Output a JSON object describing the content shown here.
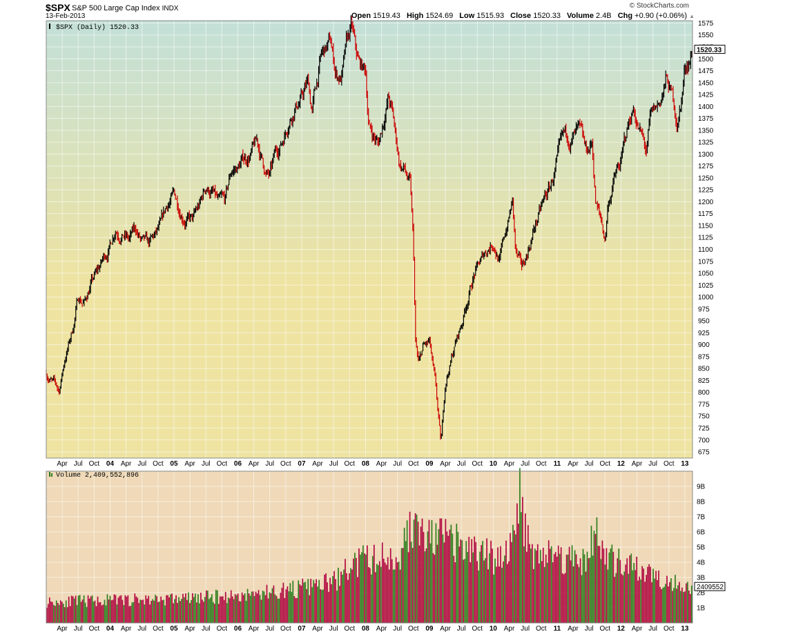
{
  "header": {
    "symbol": "$SPX",
    "name": "S&P 500 Large Cap Index",
    "exchange": "INDX",
    "date": "13-Feb-2013",
    "brand": "© StockCharts.com",
    "quote": {
      "open_label": "Open",
      "open": "1519.43",
      "high_label": "High",
      "high": "1524.69",
      "low_label": "Low",
      "low": "1515.93",
      "close_label": "Close",
      "close": "1520.33",
      "volume_label": "Volume",
      "volume": "2.4B",
      "chg_label": "Chg",
      "chg": "+0.90 (+0.06%)"
    }
  },
  "price_panel": {
    "legend": "$SPX (Daily) 1520.33",
    "last_value_tag": "1520.33"
  },
  "volume_panel": {
    "legend": "Volume 2,409,552,896",
    "last_value_tag": "2409552"
  },
  "colors": {
    "up": "#000000",
    "down": "#cc0000",
    "volume_up": "#2e7d1e",
    "volume_down": "#b00840",
    "price_bg_top": "#c3e0d8",
    "price_bg_mid": "#eee3a1",
    "volume_bg": "#efd9b8"
  },
  "chart_data": [
    {
      "type": "line",
      "title": "$SPX (Daily) 1520.33",
      "series": [
        {
          "name": "$SPX",
          "x": [
            2003.0,
            2003.11,
            2003.2,
            2003.29,
            2003.41,
            2003.5,
            2003.6,
            2003.7,
            2003.8,
            2003.9,
            2004.0,
            2004.08,
            2004.2,
            2004.3,
            2004.4,
            2004.5,
            2004.6,
            2004.7,
            2004.8,
            2004.9,
            2005.0,
            2005.08,
            2005.2,
            2005.3,
            2005.41,
            2005.5,
            2005.6,
            2005.7,
            2005.8,
            2005.9,
            2006.0,
            2006.1,
            2006.2,
            2006.3,
            2006.44,
            2006.5,
            2006.6,
            2006.7,
            2006.8,
            2006.9,
            2007.0,
            2007.1,
            2007.16,
            2007.3,
            2007.45,
            2007.53,
            2007.62,
            2007.7,
            2007.78,
            2007.85,
            2007.9,
            2008.0,
            2008.05,
            2008.2,
            2008.35,
            2008.4,
            2008.53,
            2008.6,
            2008.7,
            2008.75,
            2008.78,
            2008.83,
            2008.9,
            2009.0,
            2009.1,
            2009.18,
            2009.25,
            2009.4,
            2009.5,
            2009.6,
            2009.7,
            2009.8,
            2009.9,
            2010.0,
            2010.1,
            2010.3,
            2010.35,
            2010.45,
            2010.55,
            2010.65,
            2010.8,
            2010.9,
            2011.0,
            2011.1,
            2011.2,
            2011.33,
            2011.45,
            2011.55,
            2011.6,
            2011.7,
            2011.75,
            2011.8,
            2011.9,
            2012.0,
            2012.1,
            2012.2,
            2012.25,
            2012.4,
            2012.45,
            2012.6,
            2012.7,
            2012.75,
            2012.85,
            2012.88,
            2012.95,
            2013.0,
            2013.12
          ],
          "values": [
            842,
            820,
            800,
            870,
            930,
            1000,
            990,
            1030,
            1050,
            1080,
            1110,
            1150,
            1140,
            1120,
            1140,
            1110,
            1100,
            1120,
            1140,
            1190,
            1210,
            1190,
            1170,
            1160,
            1190,
            1230,
            1220,
            1190,
            1190,
            1260,
            1270,
            1290,
            1300,
            1320,
            1260,
            1250,
            1300,
            1330,
            1380,
            1410,
            1420,
            1450,
            1390,
            1500,
            1530,
            1470,
            1460,
            1520,
            1560,
            1500,
            1480,
            1470,
            1360,
            1320,
            1420,
            1400,
            1280,
            1270,
            1230,
            1100,
            900,
            850,
            890,
            900,
            800,
            680,
            820,
            900,
            940,
            1000,
            1050,
            1070,
            1100,
            1120,
            1080,
            1200,
            1090,
            1050,
            1100,
            1150,
            1200,
            1230,
            1280,
            1320,
            1330,
            1340,
            1290,
            1320,
            1200,
            1150,
            1120,
            1200,
            1250,
            1280,
            1350,
            1400,
            1370,
            1300,
            1360,
            1400,
            1450,
            1440,
            1390,
            1360,
            1420,
            1480,
            1520
          ]
        }
      ],
      "x_ticks": [
        "Apr",
        "Jul",
        "Oct",
        "04",
        "Apr",
        "Jul",
        "Oct",
        "05",
        "Apr",
        "Jul",
        "Oct",
        "06",
        "Apr",
        "Jul",
        "Oct",
        "07",
        "Apr",
        "Jul",
        "Oct",
        "08",
        "Apr",
        "Jul",
        "Oct",
        "09",
        "Apr",
        "Jul",
        "Oct",
        "10",
        "Apr",
        "Jul",
        "Oct",
        "11",
        "Apr",
        "Jul",
        "Oct",
        "12",
        "Apr",
        "Jul",
        "Oct",
        "13"
      ],
      "y_ticks": [
        675,
        700,
        725,
        750,
        775,
        800,
        825,
        850,
        875,
        900,
        925,
        950,
        975,
        1000,
        1025,
        1050,
        1075,
        1100,
        1125,
        1150,
        1175,
        1200,
        1225,
        1250,
        1275,
        1300,
        1325,
        1350,
        1375,
        1400,
        1425,
        1450,
        1475,
        1500,
        1525,
        1550,
        1575
      ],
      "xlim": [
        2003.0,
        2013.12
      ],
      "ylim": [
        662,
        1580
      ],
      "grid": true,
      "legend": "top-left"
    },
    {
      "type": "bar",
      "title": "Volume 2,409,552,896",
      "series": [
        {
          "name": "Volume",
          "x": [
            2003.0,
            2004.0,
            2005.0,
            2006.0,
            2007.0,
            2007.5,
            2007.8,
            2008.0,
            2008.5,
            2008.75,
            2008.85,
            2009.0,
            2009.2,
            2009.5,
            2010.0,
            2010.3,
            2010.4,
            2010.6,
            2011.0,
            2011.5,
            2011.6,
            2011.65,
            2011.8,
            2012.0,
            2012.5,
            2013.12
          ],
          "values": [
            1.4,
            1.5,
            1.6,
            1.8,
            2.3,
            2.7,
            3.8,
            4.2,
            4.3,
            6.5,
            5.9,
            5.5,
            5.7,
            5.0,
            4.3,
            5.1,
            8.5,
            4.8,
            4.4,
            4.2,
            6.7,
            5.0,
            4.3,
            3.8,
            3.2,
            2.4
          ]
        }
      ],
      "y_ticks": [
        "1B",
        "2B",
        "3B",
        "4B",
        "5B",
        "6B",
        "7B",
        "8B",
        "9B"
      ],
      "x_ticks": [
        "Apr",
        "Jul",
        "Oct",
        "04",
        "Apr",
        "Jul",
        "Oct",
        "05",
        "Apr",
        "Jul",
        "Oct",
        "06",
        "Apr",
        "Jul",
        "Oct",
        "07",
        "Apr",
        "Jul",
        "Oct",
        "08",
        "Apr",
        "Jul",
        "Oct",
        "09",
        "Apr",
        "Jul",
        "Oct",
        "10",
        "Apr",
        "Jul",
        "Oct",
        "11",
        "Apr",
        "Jul",
        "Oct",
        "12",
        "Apr",
        "Jul",
        "Oct",
        "13"
      ],
      "ylim": [
        0,
        10
      ],
      "grid": true,
      "legend": "top-left"
    }
  ]
}
